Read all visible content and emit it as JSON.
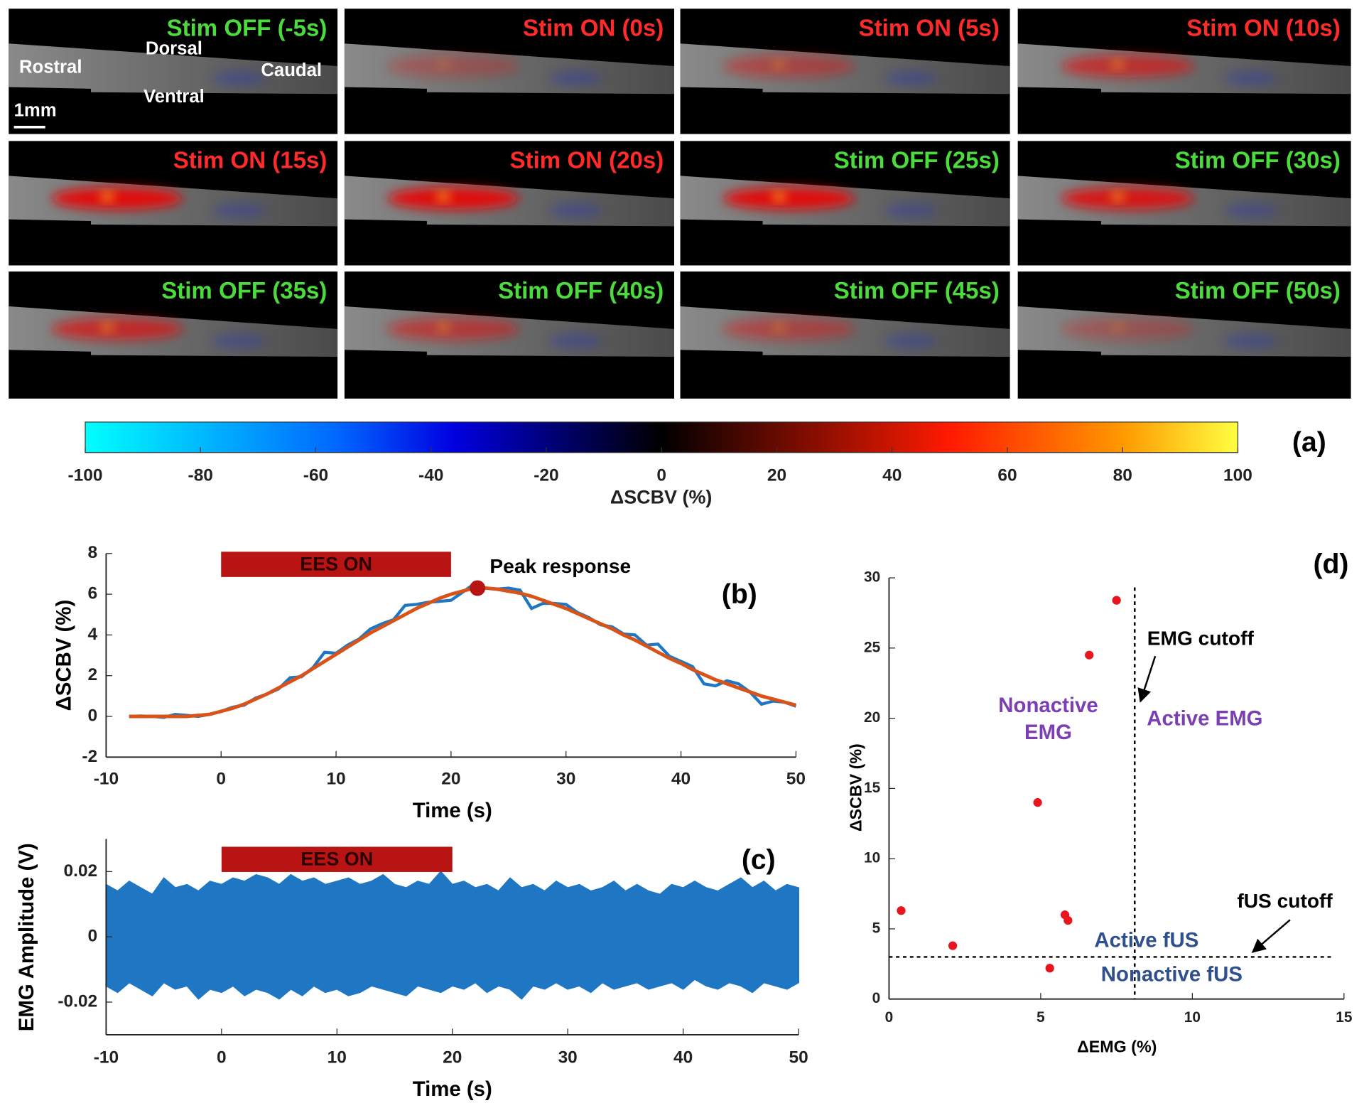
{
  "chart_data": [
    {
      "type": "image_grid",
      "tiles": [
        {
          "label": "Stim OFF (-5s)",
          "color": "#4cdb3c"
        },
        {
          "label": "Stim ON (0s)",
          "color": "#ff2a2a"
        },
        {
          "label": "Stim ON (5s)",
          "color": "#ff2a2a"
        },
        {
          "label": "Stim ON (10s)",
          "color": "#ff2a2a"
        },
        {
          "label": "Stim ON (15s)",
          "color": "#ff2a2a"
        },
        {
          "label": "Stim ON (20s)",
          "color": "#ff2a2a"
        },
        {
          "label": "Stim OFF (25s)",
          "color": "#4cdb3c"
        },
        {
          "label": "Stim OFF (30s)",
          "color": "#4cdb3c"
        },
        {
          "label": "Stim OFF (35s)",
          "color": "#4cdb3c"
        },
        {
          "label": "Stim OFF (40s)",
          "color": "#4cdb3c"
        },
        {
          "label": "Stim OFF (45s)",
          "color": "#4cdb3c"
        },
        {
          "label": "Stim OFF (50s)",
          "color": "#4cdb3c"
        }
      ],
      "orientation": {
        "rostral": "Rostral",
        "dorsal": "Dorsal",
        "caudal": "Caudal",
        "ventral": "Ventral",
        "scale": "1mm"
      },
      "colorbar": {
        "label": "ΔSCBV (%)",
        "lim": [
          -100,
          100
        ],
        "ticks": [
          -100,
          -80,
          -60,
          -40,
          -20,
          0,
          20,
          40,
          60,
          80,
          100
        ]
      },
      "panel_label": "(a)"
    },
    {
      "type": "line",
      "panel_label": "(b)",
      "x_label": "Time (s)",
      "y_label": "ΔSCBV (%)",
      "xlim": [
        -10,
        50
      ],
      "xticks": [
        -10,
        0,
        10,
        20,
        30,
        40,
        50
      ],
      "ylim": [
        -2,
        8
      ],
      "yticks": [
        -2,
        0,
        2,
        4,
        6,
        8
      ],
      "x": [
        -8,
        -7,
        -6,
        -5,
        -4,
        -3,
        -2,
        -1,
        0,
        1,
        2,
        3,
        4,
        5,
        6,
        7,
        8,
        9,
        10,
        11,
        12,
        13,
        14,
        15,
        16,
        17,
        18,
        19,
        20,
        21,
        22,
        23,
        24,
        25,
        26,
        27,
        28,
        29,
        30,
        31,
        32,
        33,
        34,
        35,
        36,
        37,
        38,
        39,
        40,
        41,
        42,
        43,
        44,
        45,
        46,
        47,
        48,
        49,
        50
      ],
      "series": [
        {
          "color": "#1f77c4",
          "values": [
            0,
            0.02,
            0,
            -0.05,
            0.1,
            0.05,
            0,
            0.1,
            0.25,
            0.45,
            0.55,
            0.9,
            1.1,
            1.35,
            1.9,
            1.95,
            2.4,
            3.15,
            3.1,
            3.5,
            3.8,
            4.3,
            4.55,
            4.75,
            5.45,
            5.5,
            5.6,
            5.65,
            5.7,
            6.1,
            6.5,
            6.3,
            6.25,
            6.3,
            6.2,
            5.3,
            5.55,
            5.55,
            5.5,
            5.1,
            4.85,
            4.5,
            4.4,
            4.05,
            4.0,
            3.5,
            3.55,
            2.95,
            2.7,
            2.45,
            1.6,
            1.5,
            1.75,
            1.6,
            1.2,
            0.6,
            0.75,
            0.7,
            0.5
          ]
        },
        {
          "color": "#d95319",
          "values": [
            0,
            0,
            0,
            0,
            0,
            0,
            0.05,
            0.1,
            0.25,
            0.4,
            0.6,
            0.85,
            1.1,
            1.4,
            1.7,
            2.0,
            2.35,
            2.7,
            3.05,
            3.4,
            3.75,
            4.1,
            4.4,
            4.7,
            5.0,
            5.3,
            5.55,
            5.8,
            6.0,
            6.15,
            6.3,
            6.3,
            6.25,
            6.15,
            6.05,
            5.9,
            5.7,
            5.5,
            5.3,
            5.05,
            4.8,
            4.55,
            4.3,
            4.0,
            3.75,
            3.45,
            3.15,
            2.85,
            2.6,
            2.3,
            2.05,
            1.8,
            1.6,
            1.4,
            1.2,
            1.0,
            0.85,
            0.7,
            0.55
          ]
        }
      ],
      "stim_bar": {
        "label": "EES ON",
        "start": 0,
        "end": 20,
        "color": "#b81414"
      },
      "peak": {
        "x": 22.3,
        "y": 6.3,
        "label": "Peak response",
        "color": "#b81414"
      }
    },
    {
      "type": "area",
      "panel_label": "(c)",
      "x_label": "Time (s)",
      "y_label": "EMG Amplitude (V)",
      "xlim": [
        -10,
        50
      ],
      "xticks": [
        -10,
        0,
        10,
        20,
        30,
        40,
        50
      ],
      "ylim": [
        -0.03,
        0.03
      ],
      "yticks": [
        -0.02,
        0,
        0.02
      ],
      "color": "#1f77c4",
      "x": [
        -10,
        -9,
        -8,
        -7,
        -6,
        -5,
        -4,
        -3,
        -2,
        -1,
        0,
        1,
        2,
        3,
        4,
        5,
        6,
        7,
        8,
        9,
        10,
        11,
        12,
        13,
        14,
        15,
        16,
        17,
        18,
        19,
        20,
        21,
        22,
        23,
        24,
        25,
        26,
        27,
        28,
        29,
        30,
        31,
        32,
        33,
        34,
        35,
        36,
        37,
        38,
        39,
        40,
        41,
        42,
        43,
        44,
        45,
        46,
        47,
        48,
        49,
        50
      ],
      "upper": [
        0.016,
        0.014,
        0.017,
        0.015,
        0.013,
        0.018,
        0.015,
        0.016,
        0.014,
        0.017,
        0.016,
        0.018,
        0.017,
        0.019,
        0.018,
        0.016,
        0.019,
        0.017,
        0.018,
        0.016,
        0.017,
        0.018,
        0.016,
        0.017,
        0.019,
        0.016,
        0.015,
        0.017,
        0.016,
        0.02,
        0.016,
        0.017,
        0.015,
        0.016,
        0.014,
        0.018,
        0.015,
        0.016,
        0.014,
        0.017,
        0.015,
        0.016,
        0.014,
        0.015,
        0.017,
        0.014,
        0.016,
        0.014,
        0.013,
        0.016,
        0.015,
        0.017,
        0.015,
        0.014,
        0.016,
        0.018,
        0.015,
        0.017,
        0.014,
        0.016,
        0.015
      ],
      "lower": [
        -0.015,
        -0.017,
        -0.014,
        -0.016,
        -0.018,
        -0.014,
        -0.016,
        -0.015,
        -0.019,
        -0.016,
        -0.017,
        -0.015,
        -0.018,
        -0.016,
        -0.017,
        -0.019,
        -0.016,
        -0.018,
        -0.015,
        -0.017,
        -0.016,
        -0.018,
        -0.017,
        -0.015,
        -0.016,
        -0.017,
        -0.018,
        -0.015,
        -0.016,
        -0.017,
        -0.015,
        -0.016,
        -0.014,
        -0.017,
        -0.015,
        -0.016,
        -0.019,
        -0.015,
        -0.016,
        -0.014,
        -0.016,
        -0.015,
        -0.017,
        -0.014,
        -0.016,
        -0.015,
        -0.014,
        -0.016,
        -0.015,
        -0.014,
        -0.016,
        -0.013,
        -0.015,
        -0.016,
        -0.014,
        -0.015,
        -0.017,
        -0.014,
        -0.015,
        -0.016,
        -0.014
      ],
      "stim_bar": {
        "label": "EES ON",
        "start": 0,
        "end": 20,
        "color": "#b81414"
      }
    },
    {
      "type": "scatter",
      "panel_label": "(d)",
      "x_label": "ΔEMG (%)",
      "y_label": "ΔSCBV (%)",
      "xlim": [
        0,
        15
      ],
      "xticks": [
        0,
        5,
        10,
        15
      ],
      "ylim": [
        0,
        30
      ],
      "yticks": [
        0,
        5,
        10,
        15,
        20,
        25,
        30
      ],
      "color": "#e8141e",
      "x": [
        0.4,
        2.1,
        4.9,
        5.3,
        5.8,
        5.9,
        6.6,
        7.5
      ],
      "values": [
        6.3,
        3.8,
        14,
        2.2,
        6,
        5.6,
        24.5,
        28.4
      ],
      "emg_cutoff": {
        "value": 8.1,
        "label": "EMG cutoff"
      },
      "fus_cutoff": {
        "value": 3,
        "label": "fUS cutoff"
      },
      "regions": {
        "nonactive_emg": [
          "Nonactive",
          "EMG"
        ],
        "active_emg": "Active EMG",
        "active_fus": "Active fUS",
        "nonactive_fus": "Nonactive fUS"
      }
    }
  ]
}
